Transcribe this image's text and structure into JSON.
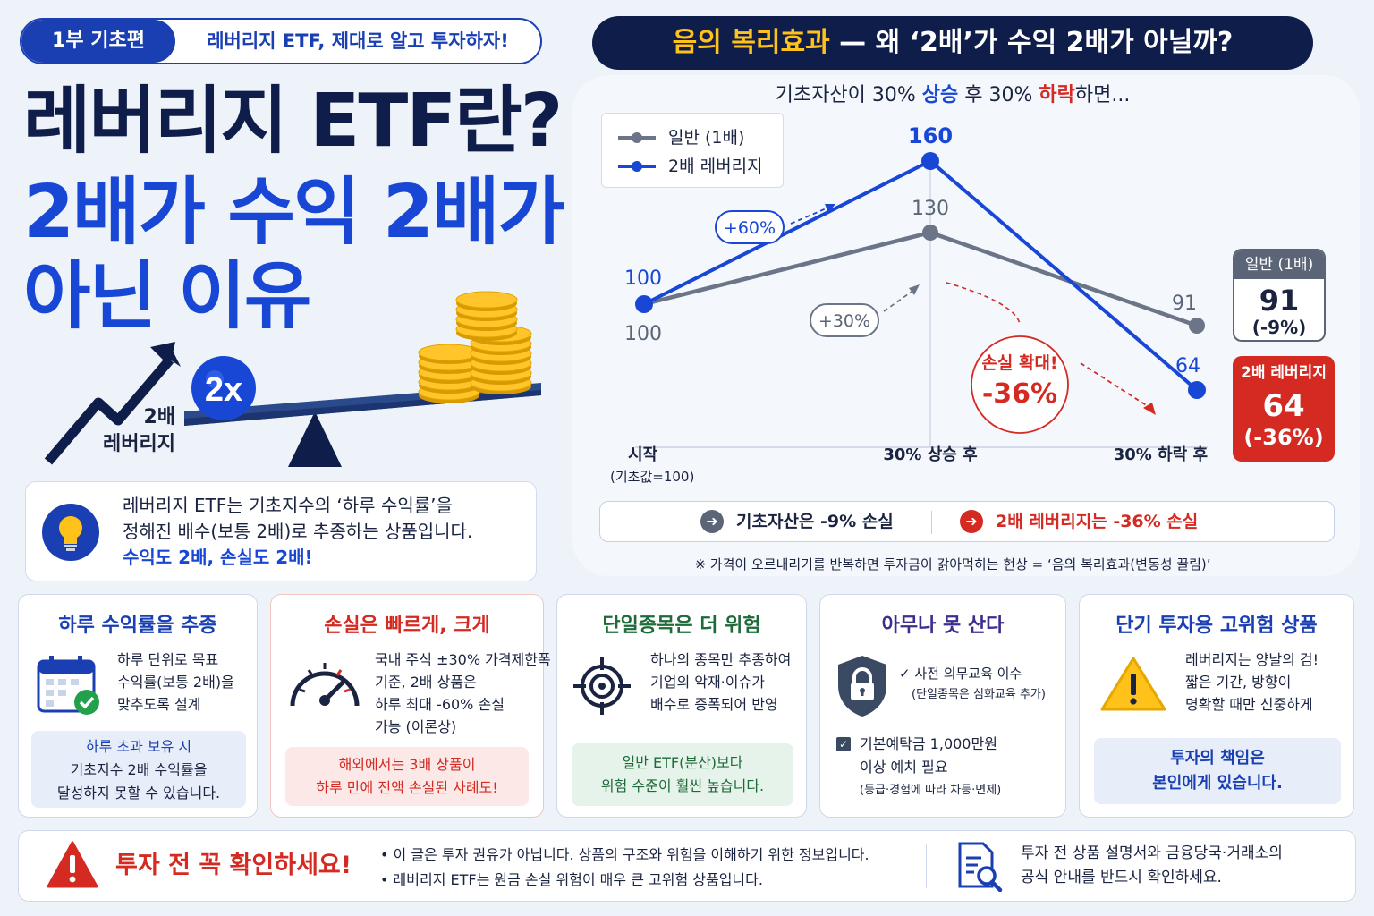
{
  "badge": {
    "part": "1부 기초편",
    "subtitle": "레버리지 ETF, 제대로 알고 투자하자!"
  },
  "title": {
    "line1": "레버리지 ETF란?",
    "line2": "2배가 수익 2배가",
    "line3": "아닌 이유"
  },
  "illustration": {
    "coin_label": "2x",
    "arrow_label_1": "2배",
    "arrow_label_2": "레버리지"
  },
  "definition": {
    "line1": "레버리지 ETF는 기초지수의 ‘하루 수익률’을",
    "line2": "정해진 배수(보통 2배)로 추종하는 상품입니다.",
    "line3": "수익도 2배, 손실도 2배!",
    "icon": "lightbulb-icon"
  },
  "chart_header": {
    "highlight": "음의 복리효과",
    "rest": " — 왜 ‘2배’가 수익 2배가 아닐까?"
  },
  "chart_sub": {
    "pre": "기초자산이 30% ",
    "up": "상승",
    "mid": " 후 30% ",
    "down": "하락",
    "post": "하면..."
  },
  "chart_data": {
    "type": "line",
    "categories": [
      "시작",
      "30% 상승 후",
      "30% 하락 후"
    ],
    "category_note": "(기초값=100)",
    "series": [
      {
        "name": "일반 (1배)",
        "values": [
          100,
          130,
          91
        ],
        "color": "#6b7587"
      },
      {
        "name": "2배 레버리지",
        "values": [
          100,
          160,
          64
        ],
        "color": "#1847d6"
      }
    ],
    "ylim": [
      40,
      175
    ],
    "annotations": {
      "gain_2x": "+60%",
      "gain_1x": "+30%",
      "loss_title": "손실 확대!",
      "loss_value": "-36%"
    },
    "grid": false,
    "legend": "top-left"
  },
  "result_boxes": {
    "normal": {
      "label": "일반 (1배)",
      "value": "91",
      "pct": "(-9%)"
    },
    "lev": {
      "label": "2배 레버리지",
      "value": "64",
      "pct": "(-36%)"
    }
  },
  "summary": {
    "normal": "기초자산은 -9% 손실",
    "lev": "2배 레버리지는 -36% 손실"
  },
  "note": "※ 가격이 오르내리기를 반복하면 투자금이 갉아먹히는 현상 = ‘음의 복리효과(변동성 끌림)’",
  "cards": [
    {
      "title": "하루 수익률을 추종",
      "lines": [
        "하루 단위로 목표",
        "수익률(보통 2배)을",
        "맞추도록 설계"
      ],
      "box": [
        "하루 초과 보유 시",
        "기초지수 2배 수익률을",
        "달성하지 못할 수 있습니다."
      ],
      "icon": "calendar-check-icon",
      "color": "#1a3fb3"
    },
    {
      "title": "손실은 빠르게, 크게",
      "lines": [
        "국내 주식 ±30% 가격제한폭",
        "기준, 2배 상품은",
        "하루 최대 -60% 손실",
        "가능 (이론상)"
      ],
      "box": [
        "해외에서는 3배 상품이",
        "하루 만에 전액 손실된 사례도!"
      ],
      "icon": "speedometer-icon",
      "color": "#d42a22"
    },
    {
      "title": "단일종목은 더 위험",
      "lines": [
        "하나의 종목만 추종하여",
        "기업의 악재·이슈가",
        "배수로 증폭되어 반영"
      ],
      "box": [
        "일반 ETF(분산)보다",
        "위험 수준이 훨씬 높습니다."
      ],
      "icon": "target-icon",
      "color": "#1e6b3a"
    },
    {
      "title": "아무나 못 산다",
      "lines": [
        "✓ 사전 의무교육 이수",
        "(단일종목은 심화교육 추가)",
        "기본예탁금 1,000만원",
        "이상 예치 필요",
        "(등급·경험에 따라 차등·면제)"
      ],
      "icon": "padlock-icon",
      "color": "#3b2e8e"
    },
    {
      "title": "단기 투자용 고위험 상품",
      "lines": [
        "레버리지는 양날의 검!",
        "짧은 기간, 방향이",
        "명확할 때만 신중하게"
      ],
      "box": [
        "투자의 책임은",
        "본인에게 있습니다."
      ],
      "icon": "warning-icon",
      "color": "#1a3fb3"
    }
  ],
  "bottom": {
    "title": "투자 전 꼭 확인하세요!",
    "items": [
      "이 글은 투자 권유가 아닙니다. 상품의 구조와 위험을 이해하기 위한 정보입니다.",
      "레버리지 ETF는 원금 손실 위험이 매우 큰 고위험 상품입니다."
    ],
    "right_line1": "투자 전 상품 설명서와 금융당국·거래소의",
    "right_line2": "공식 안내를 반드시 확인하세요."
  }
}
